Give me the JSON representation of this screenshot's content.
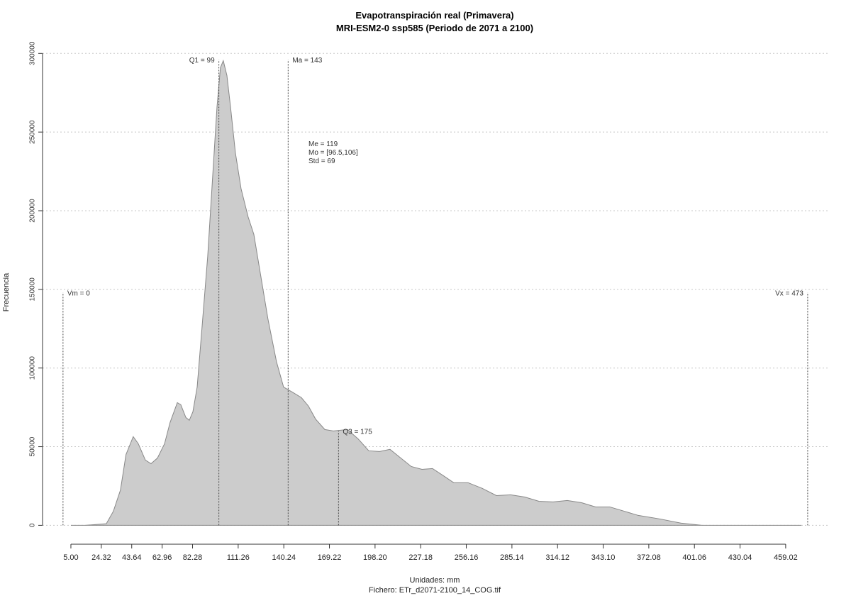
{
  "chart_data": {
    "type": "area",
    "title": "Evapotranspiración real (Primavera)",
    "subtitle": "MRI-ESM2-0 ssp585 (Periodo de 2071 a 2100)",
    "x_label": "Unidades: mm",
    "caption": "Fichero: ETr_d2071-2100_14_COG.tif",
    "y_label": "Frecuencia",
    "fill_color": "#cccccc",
    "line_color": "#888888",
    "grid": true,
    "x": [
      5,
      14,
      27.5,
      32,
      36.5,
      40,
      44.6,
      47.8,
      52.3,
      55.9,
      60,
      64.5,
      68,
      72.6,
      74.8,
      78,
      80.2,
      82.5,
      85.2,
      88.3,
      91.9,
      95,
      97.8,
      100,
      101.8,
      104.1,
      106.4,
      109.5,
      113.1,
      117.6,
      121.2,
      125.7,
      130.2,
      135.6,
      140.1,
      145.5,
      151.4,
      155.9,
      160.4,
      166.3,
      171.7,
      180.7,
      187.4,
      194.2,
      201,
      207.7,
      214.5,
      221.2,
      228,
      234.7,
      241.5,
      248.2,
      257.3,
      266.3,
      275.3,
      284.3,
      293.3,
      302.3,
      311.3,
      320.3,
      329.4,
      338.3,
      347.3,
      356.4,
      365.4,
      378.9,
      392.4,
      405.9,
      469
    ],
    "values": [
      0,
      0,
      1000,
      9000,
      22500,
      45000,
      56400,
      51900,
      41500,
      39200,
      42800,
      51900,
      65400,
      78000,
      76700,
      68600,
      66800,
      72200,
      87900,
      126000,
      171000,
      221000,
      266000,
      291000,
      295400,
      286000,
      266000,
      236800,
      214000,
      196000,
      185000,
      158000,
      131000,
      104000,
      87900,
      84800,
      81200,
      75800,
      67600,
      60900,
      60000,
      60900,
      55000,
      47400,
      46900,
      48300,
      42800,
      37400,
      35600,
      36100,
      31600,
      27100,
      27100,
      23500,
      18900,
      19400,
      18000,
      15300,
      14900,
      15800,
      14400,
      11700,
      11700,
      9000,
      6300,
      4100,
      1400,
      0,
      0
    ],
    "xlim": [
      -13,
      487
    ],
    "ylim": [
      -12000,
      306000
    ],
    "xticks": [
      {
        "value": 5,
        "label": "5.00"
      },
      24.32,
      43.64,
      62.96,
      82.28,
      111.26,
      140.24,
      169.22,
      {
        "value": 198.2,
        "label": "198.20"
      },
      227.18,
      256.16,
      285.14,
      314.12,
      {
        "value": 343.1,
        "label": "343.10"
      },
      372.08,
      401.06,
      430.04,
      459.02
    ],
    "yticks": [
      0,
      50000,
      100000,
      150000,
      200000,
      250000,
      300000
    ],
    "markers": [
      {
        "label": "Vm = 0",
        "value": 0,
        "height": 148000
      },
      {
        "label": "Q1 = 99",
        "value": 99,
        "height": 296000
      },
      {
        "label": "Ma = 143",
        "value": 143,
        "height": 296000
      },
      {
        "label": "Q3 = 175",
        "value": 175,
        "height": 60000
      },
      {
        "label": "Vx = 473",
        "value": 473,
        "height": 148000
      }
    ],
    "stats": [
      "Me = 119",
      "Mo = [96.5,106]",
      "Std = 69"
    ]
  }
}
